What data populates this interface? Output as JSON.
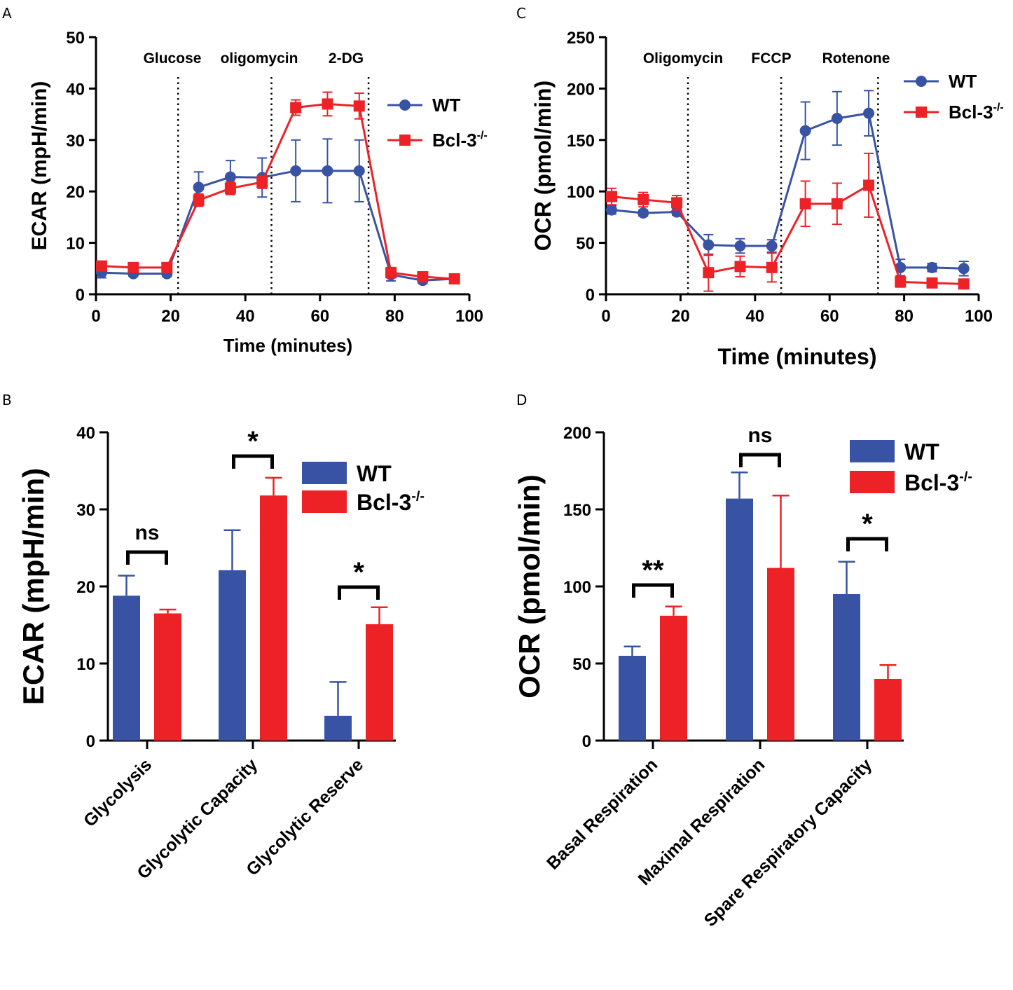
{
  "colors": {
    "wt": "#3953a4",
    "ko": "#ec2227",
    "axis": "#000000"
  },
  "chart_data": [
    {
      "panel": "A",
      "type": "line",
      "ylabel": "ECAR (mpH/min)",
      "xlabel": "Time (minutes)",
      "xlim": [
        0,
        100
      ],
      "ylim": [
        0,
        50
      ],
      "xticks": [
        "0",
        "20",
        "40",
        "60",
        "80",
        "100"
      ],
      "yticks": [
        "0",
        "10",
        "20",
        "30",
        "40",
        "50"
      ],
      "treatments": [
        {
          "label": "Glucose",
          "x": 22
        },
        {
          "label": "oligomycin",
          "x": 47
        },
        {
          "label": "2-DG",
          "x": 73
        }
      ],
      "x": [
        1.5,
        10,
        19,
        27.5,
        36,
        44.5,
        53.5,
        62,
        70.5,
        79,
        87.5,
        96
      ],
      "series": [
        {
          "name": "WT",
          "sup": "",
          "marker": "circle",
          "values": [
            4.2,
            4.0,
            4.0,
            20.8,
            22.8,
            22.7,
            24.0,
            24.0,
            24.0,
            3.8,
            2.7,
            3.0
          ],
          "errors": [
            1.0,
            0.5,
            0.5,
            3.0,
            3.2,
            3.8,
            6.0,
            6.2,
            6.0,
            1.2,
            0.6,
            0.6
          ]
        },
        {
          "name": "Bcl-3",
          "sup": "-/-",
          "marker": "square",
          "values": [
            5.5,
            5.2,
            5.2,
            18.3,
            20.6,
            21.8,
            36.3,
            37.0,
            36.6,
            4.2,
            3.4,
            3.0
          ],
          "errors": [
            0.8,
            0.6,
            0.6,
            1.2,
            1.2,
            1.2,
            1.5,
            2.3,
            2.5,
            1.0,
            0.6,
            0.5
          ]
        }
      ]
    },
    {
      "panel": "B",
      "type": "bar",
      "ylabel": "ECAR (mpH/min)",
      "ylim": [
        0,
        40
      ],
      "yticks": [
        "0",
        "10",
        "20",
        "30",
        "40"
      ],
      "categories": [
        "Glycolysis",
        "Glycolytic Capacity",
        "Glycolytic Reserve"
      ],
      "series": [
        {
          "name": "WT",
          "sup": "",
          "values": [
            18.8,
            22.1,
            3.2
          ],
          "errors": [
            2.6,
            5.2,
            4.4
          ]
        },
        {
          "name": "Bcl-3",
          "sup": "-/-",
          "values": [
            16.5,
            31.8,
            15.1
          ],
          "errors": [
            0.5,
            2.3,
            2.2
          ]
        }
      ],
      "significance": [
        "ns",
        "*",
        "*"
      ]
    },
    {
      "panel": "C",
      "type": "line",
      "ylabel": "OCR (pmol/min)",
      "xlabel": "Time (minutes)",
      "xlim": [
        0,
        100
      ],
      "ylim": [
        0,
        250
      ],
      "xticks": [
        "0",
        "20",
        "40",
        "60",
        "80",
        "100"
      ],
      "yticks": [
        "0",
        "50",
        "100",
        "150",
        "200",
        "250"
      ],
      "treatments": [
        {
          "label": "Oligomycin",
          "x": 22
        },
        {
          "label": "FCCP",
          "x": 47
        },
        {
          "label": "Rotenone",
          "x": 73
        }
      ],
      "x": [
        1.5,
        10,
        19,
        27.5,
        36,
        44.5,
        53.5,
        62,
        70.5,
        79,
        87.5,
        96
      ],
      "series": [
        {
          "name": "WT",
          "sup": "",
          "marker": "circle",
          "values": [
            82,
            79,
            80,
            48,
            47,
            47,
            159,
            171,
            176,
            26,
            26,
            25
          ],
          "errors": [
            4,
            3,
            3,
            10,
            7,
            6,
            28,
            26,
            22,
            8,
            4,
            7
          ]
        },
        {
          "name": "Bcl-3",
          "sup": "-/-",
          "marker": "square",
          "values": [
            95,
            92,
            89,
            21,
            27,
            26,
            88,
            88,
            106,
            12,
            11,
            10
          ],
          "errors": [
            8,
            7,
            7,
            18,
            10,
            14,
            22,
            20,
            31,
            5,
            3,
            3
          ]
        }
      ]
    },
    {
      "panel": "D",
      "type": "bar",
      "ylabel": "OCR (pmol/min)",
      "ylim": [
        0,
        200
      ],
      "yticks": [
        "0",
        "50",
        "100",
        "150",
        "200"
      ],
      "categories": [
        "Basal Respiration",
        "Maximal Respiration",
        "Spare Respiratory Capacity"
      ],
      "series": [
        {
          "name": "WT",
          "sup": "",
          "values": [
            55,
            157,
            95
          ],
          "errors": [
            6,
            17,
            21
          ]
        },
        {
          "name": "Bcl-3",
          "sup": "-/-",
          "values": [
            81,
            112,
            40
          ],
          "errors": [
            6,
            47,
            9
          ]
        }
      ],
      "significance": [
        "**",
        "ns",
        "*"
      ]
    }
  ]
}
